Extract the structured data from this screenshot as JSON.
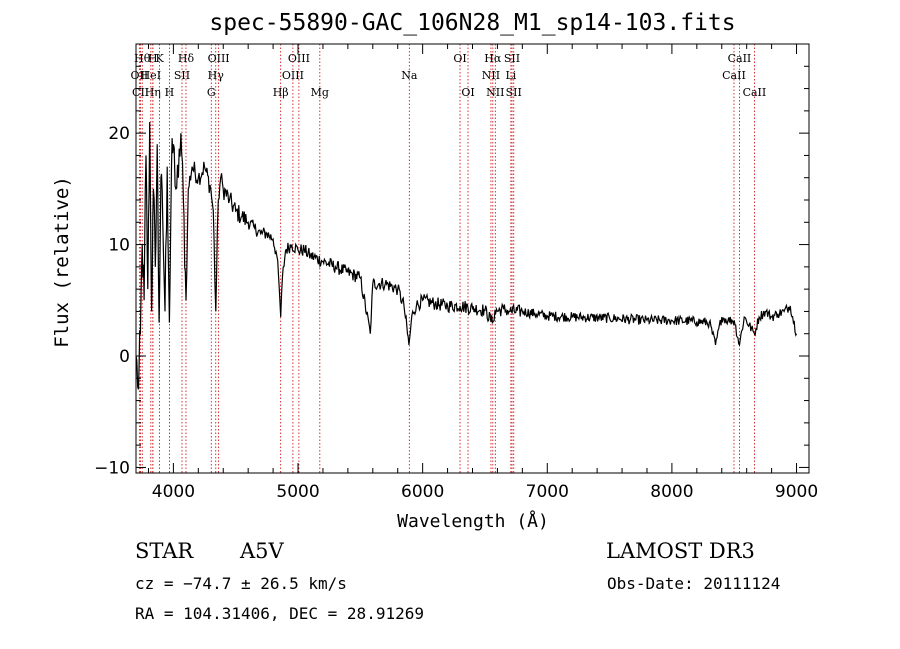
{
  "chart_data": {
    "type": "line",
    "title": "spec-55890-GAC_106N28_M1_sp14-103.fits",
    "xlabel": "Wavelength (Å)",
    "ylabel": "Flux (relative)",
    "xlim": [
      3700,
      9100
    ],
    "ylim": [
      -10.5,
      28
    ],
    "xticks": [
      4000,
      5000,
      6000,
      7000,
      8000,
      9000
    ],
    "yticks": [
      -10,
      0,
      10,
      20
    ],
    "grid": false,
    "legend": "none",
    "line_color": "#000000",
    "marker_color": "#cc0000",
    "series": [
      {
        "x": [
          3700,
          3720,
          3735,
          3750,
          3765,
          3780,
          3795,
          3810,
          3825,
          3840,
          3855,
          3870,
          3885,
          3900,
          3915,
          3933,
          3950,
          3968,
          3985,
          4000,
          4020,
          4040,
          4060,
          4080,
          4101,
          4120,
          4150,
          4200,
          4250,
          4300,
          4320,
          4340,
          4360,
          4380,
          4400,
          4450,
          4500,
          4550,
          4600,
          4650,
          4700,
          4750,
          4800,
          4830,
          4850,
          4861,
          4875,
          4900,
          4950,
          5000,
          5050,
          5100,
          5200,
          5300,
          5400,
          5500,
          5580,
          5600,
          5700,
          5800,
          5850,
          5890,
          5920,
          5950,
          6000,
          6100,
          6200,
          6300,
          6400,
          6500,
          6560,
          6580,
          6650,
          6700,
          6800,
          6900,
          7000,
          7200,
          7500,
          7800,
          8000,
          8200,
          8300,
          8350,
          8400,
          8450,
          8500,
          8542,
          8580,
          8662,
          8700,
          8750,
          8800,
          8850,
          8900,
          8950,
          9000
        ],
        "y": [
          0,
          -3,
          2,
          10,
          5,
          18,
          6,
          21,
          4,
          15,
          8,
          19,
          3,
          16,
          12,
          4,
          17,
          3,
          17,
          19,
          15,
          16,
          20,
          14,
          5,
          15,
          17,
          16,
          17,
          15,
          13,
          4,
          14,
          16,
          15,
          14,
          13,
          12.5,
          12,
          11.5,
          11,
          11,
          10.5,
          9,
          6,
          3.5,
          7,
          9.5,
          10,
          9.5,
          9.5,
          9,
          8.5,
          8,
          7.5,
          7,
          2,
          6.5,
          6.5,
          6,
          4.5,
          1,
          4,
          4.5,
          5,
          4.7,
          4.5,
          4.5,
          4.3,
          4.1,
          3,
          4,
          4.2,
          4,
          4,
          3.8,
          3.6,
          3.5,
          3.4,
          3.2,
          3.2,
          3.1,
          3,
          1,
          3.5,
          3.2,
          3.2,
          1,
          3.5,
          2,
          3.5,
          4,
          3.5,
          3.8,
          4,
          4.5,
          2
        ]
      }
    ],
    "lines": [
      {
        "label": "Hθ",
        "x": 3750,
        "row": 0
      },
      {
        "label": "OII",
        "x": 3727,
        "row": 1
      },
      {
        "label": "CII",
        "x": 3737,
        "row": 2
      },
      {
        "label": "H",
        "x": 3835,
        "row": 0
      },
      {
        "label": "K",
        "x": 3889,
        "row": 0
      },
      {
        "label": "HeI",
        "x": 3819,
        "row": 1
      },
      {
        "label": "Hη",
        "x": 3835,
        "row": 2
      },
      {
        "label": "H",
        "x": 3968,
        "row": 2
      },
      {
        "label": "SII",
        "x": 4069,
        "row": 1
      },
      {
        "label": "Hδ",
        "x": 4101,
        "row": 0
      },
      {
        "label": "OIII",
        "x": 4363,
        "row": 0
      },
      {
        "label": "Hγ",
        "x": 4340,
        "row": 1
      },
      {
        "label": "G",
        "x": 4304,
        "row": 2
      },
      {
        "label": "OIII",
        "x": 5007,
        "row": 0
      },
      {
        "label": "OIII",
        "x": 4959,
        "row": 1
      },
      {
        "label": "Hβ",
        "x": 4861,
        "row": 2
      },
      {
        "label": "Mg",
        "x": 5175,
        "row": 2
      },
      {
        "label": "Na",
        "x": 5893,
        "row": 1
      },
      {
        "label": "OI",
        "x": 6300,
        "row": 0
      },
      {
        "label": "OI",
        "x": 6364,
        "row": 2
      },
      {
        "label": "Hα",
        "x": 6563,
        "row": 0
      },
      {
        "label": "SII",
        "x": 6717,
        "row": 0
      },
      {
        "label": "NII",
        "x": 6548,
        "row": 1
      },
      {
        "label": "Li",
        "x": 6708,
        "row": 1
      },
      {
        "label": "NII",
        "x": 6583,
        "row": 2
      },
      {
        "label": "SII",
        "x": 6731,
        "row": 2
      },
      {
        "label": "CaII",
        "x": 8542,
        "row": 0
      },
      {
        "label": "CaII",
        "x": 8498,
        "row": 1
      },
      {
        "label": "CaII",
        "x": 8662,
        "row": 2
      }
    ]
  },
  "info": {
    "object_class": "STAR",
    "subclass": "A5V",
    "survey": "LAMOST DR3",
    "redshift": "cz = −74.7 ± 26.5 km/s",
    "obs_date": "Obs-Date: 20111124",
    "coords": "RA = 104.31406, DEC =  28.91269"
  }
}
